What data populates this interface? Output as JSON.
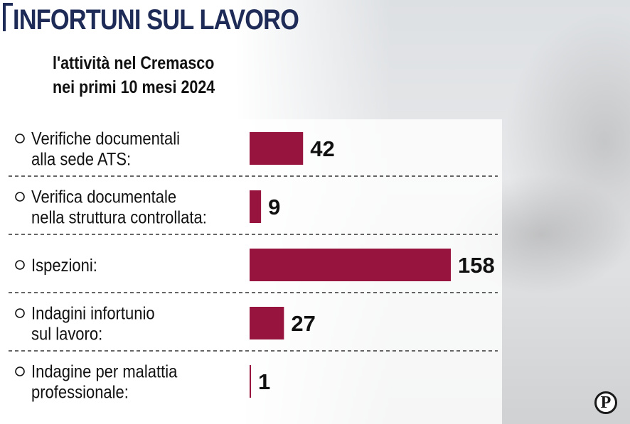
{
  "header": {
    "title": "INFORTUNI SUL LAVORO",
    "subtitle_line1": "l'attività nel Cremasco",
    "subtitle_line2": "nei primi 10 mesi 2024"
  },
  "logo": {
    "letter": "P"
  },
  "colors": {
    "bar": "#97143f",
    "title": "#1e2b57",
    "text": "#111111",
    "divider": "#333333"
  },
  "chart_data": {
    "type": "bar",
    "orientation": "horizontal",
    "title": "INFORTUNI SUL LAVORO",
    "subtitle": "l'attività nel Cremasco nei primi 10 mesi 2024",
    "categories": [
      [
        "Verifiche documentali",
        "alla sede ATS:"
      ],
      [
        "Verifica documentale",
        "nella struttura controllata:"
      ],
      [
        "Ispezioni:"
      ],
      [
        "Indagini infortunio",
        "sul lavoro:"
      ],
      [
        "Indagine per malattia",
        "professionale:"
      ]
    ],
    "values": [
      42,
      9,
      158,
      27,
      1
    ],
    "value_labels": [
      "42",
      "9",
      "158",
      "27",
      "1"
    ],
    "xlim": [
      0,
      158
    ],
    "grid": false
  }
}
